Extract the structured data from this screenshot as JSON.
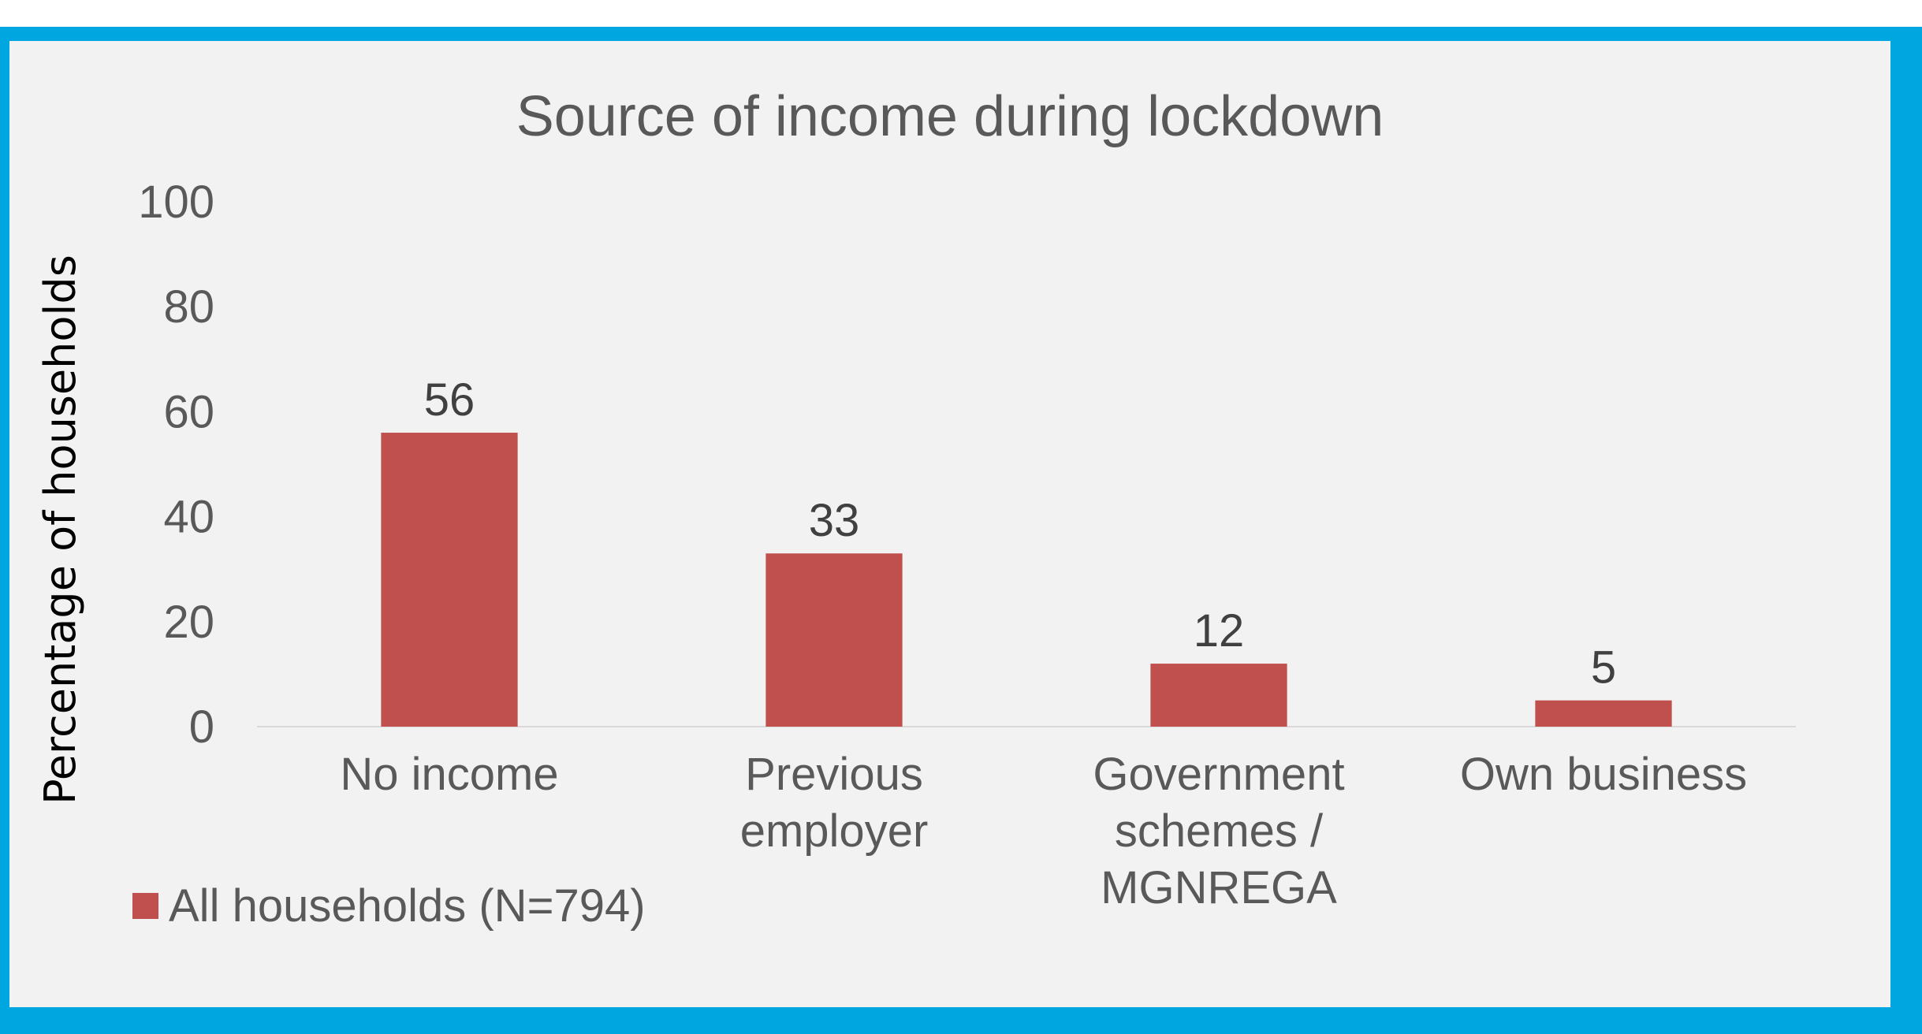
{
  "chart_data": {
    "type": "bar",
    "title": "Source of income during lockdown",
    "xlabel": "",
    "ylabel": "Percentage of households",
    "categories": [
      [
        "No income"
      ],
      [
        "Previous",
        "employer"
      ],
      [
        "Government",
        "schemes /",
        "MGNREGA"
      ],
      [
        "Own business"
      ]
    ],
    "series": [
      {
        "name": "All households (N=794)",
        "values": [
          56,
          33,
          12,
          5
        ],
        "color": "#c0504d"
      }
    ],
    "ylim": [
      0,
      100
    ],
    "yticks": [
      "0",
      "20",
      "40",
      "60",
      "80",
      "100"
    ],
    "data_labels": [
      "56",
      "33",
      "12",
      "5"
    ],
    "grid": false,
    "legend": "bottom-left"
  },
  "colors": {
    "frame": "#00a6e0",
    "panel": "#f2f2f2",
    "bar": "#c0504d",
    "axis": "#d9d9d9"
  }
}
